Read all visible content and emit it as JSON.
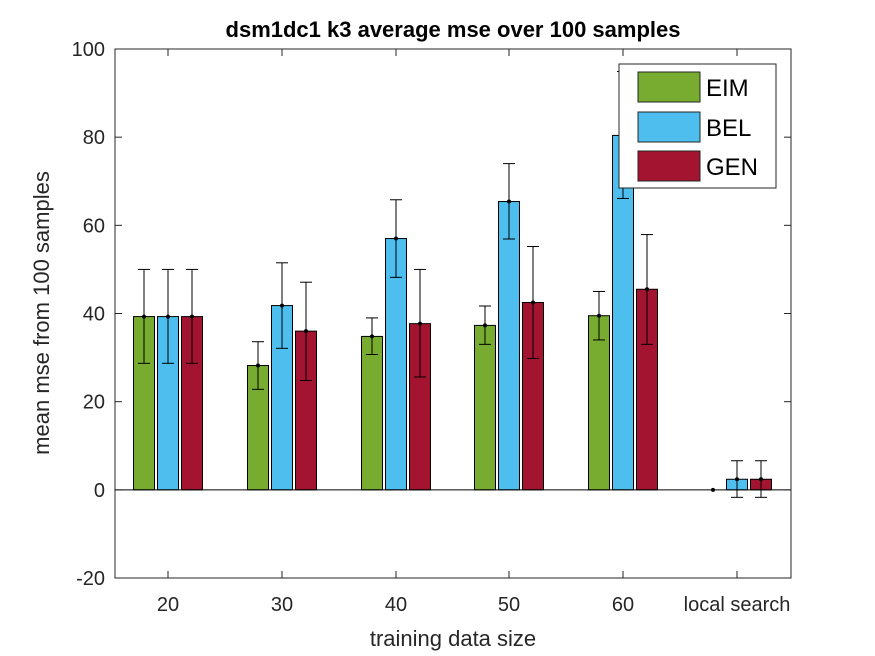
{
  "chart_data": {
    "type": "bar",
    "title": "dsm1dc1 k3 average mse over 100 samples",
    "xlabel": "training data size",
    "ylabel": "mean mse from 100 samples",
    "categories": [
      "20",
      "30",
      "40",
      "50",
      "60",
      "local search"
    ],
    "ylim": [
      -20,
      100
    ],
    "yticks": [
      -20,
      0,
      20,
      40,
      60,
      80,
      100
    ],
    "yticklabels": [
      "-20",
      "0",
      "20",
      "40",
      "60",
      "80",
      "100"
    ],
    "grid": false,
    "legend_position": "top-right",
    "series": [
      {
        "name": "EIM",
        "color": "#77AC30",
        "values": [
          39.3,
          28.2,
          34.8,
          37.3,
          39.5,
          0
        ],
        "error_low": [
          28.7,
          22.8,
          30.7,
          33.0,
          34.0,
          0
        ],
        "error_high": [
          50.0,
          33.6,
          39.0,
          41.7,
          45.0,
          0
        ]
      },
      {
        "name": "BEL",
        "color": "#4DBEEE",
        "values": [
          39.3,
          41.8,
          57.0,
          65.4,
          80.4,
          2.4
        ],
        "error_low": [
          28.7,
          32.1,
          48.2,
          56.9,
          66.1,
          -1.7
        ],
        "error_high": [
          50.0,
          51.5,
          65.8,
          74.0,
          94.9,
          6.6
        ]
      },
      {
        "name": "GEN",
        "color": "#A2142F",
        "values": [
          39.3,
          36.0,
          37.7,
          42.5,
          45.5,
          2.4
        ],
        "error_low": [
          28.7,
          24.8,
          25.6,
          29.8,
          33.0,
          -1.7
        ],
        "error_high": [
          50.0,
          47.1,
          50.0,
          55.2,
          57.9,
          6.6
        ]
      }
    ]
  }
}
